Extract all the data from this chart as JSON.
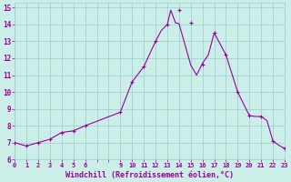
{
  "hours": [
    0,
    1,
    2,
    3,
    4,
    5,
    6,
    9,
    10,
    11,
    12,
    13,
    14,
    15,
    16,
    17,
    18,
    19,
    20,
    21,
    22,
    23
  ],
  "temps": [
    7.0,
    6.8,
    7.0,
    7.2,
    7.6,
    7.7,
    8.0,
    8.8,
    10.6,
    11.5,
    13.0,
    14.0,
    14.85,
    14.1,
    11.6,
    13.5,
    12.2,
    10.0,
    8.6,
    8.55,
    7.1,
    6.65
  ],
  "line_x": [
    0,
    1,
    2,
    3,
    4,
    5,
    6,
    9,
    10,
    11,
    12,
    12.5,
    13,
    13.3,
    13.7,
    14,
    15,
    15.5,
    16,
    16.5,
    17,
    18,
    19,
    20,
    20.5,
    21,
    21.5,
    22,
    22.5,
    23
  ],
  "line_y": [
    7.0,
    6.8,
    7.0,
    7.2,
    7.6,
    7.7,
    8.0,
    8.8,
    10.6,
    11.5,
    13.0,
    13.65,
    14.0,
    14.85,
    14.1,
    14.05,
    11.6,
    11.0,
    11.7,
    12.2,
    13.5,
    12.2,
    10.0,
    8.6,
    8.55,
    8.55,
    8.3,
    7.1,
    6.85,
    6.65
  ],
  "all_x": [
    0,
    1,
    2,
    3,
    4,
    5,
    6,
    7,
    8,
    9,
    10,
    11,
    12,
    13,
    14,
    15,
    16,
    17,
    18,
    19,
    20,
    21,
    22,
    23
  ],
  "xtick_labels": [
    "0",
    "1",
    "2",
    "3",
    "4",
    "5",
    "6",
    "",
    "",
    "9",
    "10",
    "11",
    "12",
    "13",
    "14",
    "15",
    "16",
    "17",
    "18",
    "19",
    "20",
    "21",
    "22",
    "23"
  ],
  "yticks": [
    6,
    7,
    8,
    9,
    10,
    11,
    12,
    13,
    14,
    15
  ],
  "xlim": [
    0,
    23
  ],
  "ylim": [
    6,
    15.3
  ],
  "xlabel": "Windchill (Refroidissement éolien,°C)",
  "line_color": "#990099",
  "bg_color": "#cceee8",
  "grid_color": "#99cccc"
}
